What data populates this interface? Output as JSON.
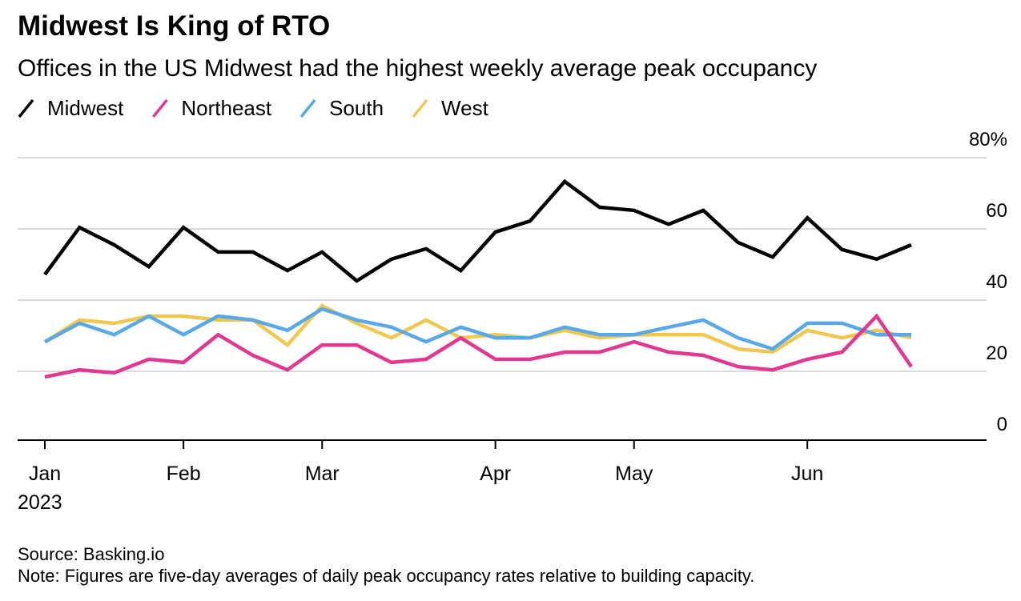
{
  "chart_data": {
    "type": "line",
    "title": "Midwest Is King of RTO",
    "subtitle": "Offices in the US Midwest had the highest weekly average peak occupancy",
    "categories": [
      "Jan",
      null,
      null,
      null,
      "Feb",
      null,
      null,
      null,
      "Mar",
      null,
      null,
      null,
      null,
      "Apr",
      null,
      null,
      null,
      "May",
      null,
      null,
      null,
      null,
      "Jun",
      null,
      null,
      null
    ],
    "x_sublabel": "2023",
    "series": [
      {
        "name": "Midwest",
        "color": "#000000",
        "values": [
          47.2,
          60.4,
          55.5,
          49.4,
          60.4,
          53.5,
          53.5,
          48.3,
          53.5,
          45.4,
          51.5,
          54.4,
          48.3,
          59.1,
          62.2,
          73.3,
          66.1,
          65.2,
          61.3,
          65.2,
          56.2,
          52.1,
          63.1,
          54.2,
          51.5,
          55.5
        ]
      },
      {
        "name": "Northeast",
        "color": "#e0398f",
        "values": [
          18.4,
          20.4,
          19.6,
          23.4,
          22.5,
          30.3,
          24.5,
          20.4,
          27.4,
          27.4,
          22.5,
          23.4,
          29.4,
          23.4,
          23.4,
          25.4,
          25.4,
          28.3,
          25.4,
          24.5,
          21.3,
          20.4,
          23.4,
          25.4,
          35.5,
          21.3
        ]
      },
      {
        "name": "South",
        "color": "#5aa9e6",
        "values": [
          28.3,
          33.5,
          30.3,
          35.5,
          30.3,
          35.5,
          34.4,
          31.5,
          37.5,
          34.4,
          32.4,
          28.3,
          32.4,
          29.4,
          29.4,
          32.4,
          30.3,
          30.3,
          32.4,
          34.4,
          29.4,
          26.3,
          33.5,
          33.5,
          30.3,
          30.3
        ]
      },
      {
        "name": "West",
        "color": "#f0c850",
        "values": [
          28.3,
          34.4,
          33.5,
          35.5,
          35.5,
          34.4,
          34.4,
          27.4,
          38.4,
          33.5,
          29.4,
          34.4,
          29.4,
          30.3,
          29.4,
          31.5,
          29.4,
          30.3,
          30.3,
          30.3,
          26.3,
          25.4,
          31.5,
          29.4,
          31.5,
          29.4
        ]
      }
    ],
    "ylim": [
      0,
      80
    ],
    "yticks": [
      0,
      20,
      40,
      60,
      {
        "value": 80,
        "label": "80%"
      }
    ],
    "grid": true,
    "source": "Source: Basking.io",
    "note": "Note: Figures are five-day averages of daily peak occupancy rates relative to building capacity."
  }
}
